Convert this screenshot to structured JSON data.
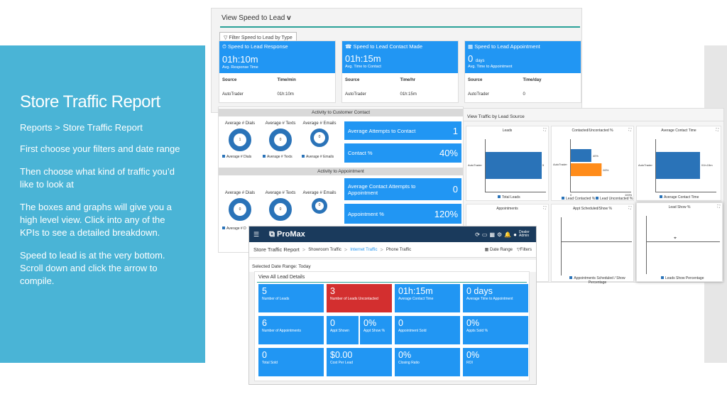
{
  "slide": {
    "title": "Store Traffic Report",
    "breadcrumb": "Reports > Store Traffic Report",
    "paragraphs": [
      "First choose your filters and date range",
      "Then choose what kind of traffic you’d like to look at",
      "The boxes and graphs will give you a high level view. Click into any of the KPIs to see a detailed breakdown.",
      "Speed to lead is at the very bottom. Scroll down and click the arrow to compile."
    ]
  },
  "speed": {
    "title": "View Speed to Lead",
    "filter_button": "Filter Speed to Lead by Type",
    "cards": [
      {
        "title": "Speed to Lead Response",
        "value": "01h:10m",
        "sub": "Avg. Response Time",
        "col1": "Source",
        "col2": "Time/min",
        "src": "AutoTrader",
        "val": "01h:10m"
      },
      {
        "title": "Speed to Lead Contact Made",
        "value": "01h:15m",
        "sub": "Avg. Time to Contact",
        "col1": "Source",
        "col2": "Time/hr",
        "src": "AutoTrader",
        "val": "01h:15m"
      },
      {
        "title": "Speed to Lead Appointment",
        "value": "0",
        "unit": "days",
        "sub": "Avg. Time to Appointment",
        "col1": "Source",
        "col2": "Time/day",
        "src": "AutoTrader",
        "val": "0"
      }
    ]
  },
  "activity": {
    "header1": "Activity to Customer Contact",
    "header2": "Activity to Appointment",
    "dials": [
      "Average # Dials",
      "Average # Texts",
      "Average # Emails"
    ],
    "dial_values": [
      "1",
      "0",
      "0"
    ],
    "dial_values2": [
      "0",
      "0",
      "0"
    ],
    "legend": [
      "Average # Dials",
      "Average # Texts",
      "Average # Emails"
    ],
    "legend2": "Average # D",
    "kpis": [
      {
        "label": "Average Attempts to Contact",
        "value": "1"
      },
      {
        "label": "Contact %",
        "value": "40%"
      },
      {
        "label": "Average Contact Attempts to Appointment",
        "value": "0"
      },
      {
        "label": "Appointment %",
        "value": "120%"
      }
    ]
  },
  "traffic": {
    "title": "View Traffic by Lead Source",
    "panels": [
      "Leads",
      "Contacted/Uncontacted %",
      "Average Contact Time",
      "Appointments",
      "Appt Scheduled/Show %",
      "Lead Show %"
    ],
    "legend_leads": "Total Leads",
    "legend_contacted": "Lead Contacted %",
    "legend_uncontacted": "Lead Uncontacted %",
    "legend_avg": "Average Contact Time",
    "legend_appt": "Appointments Scheduled / Show Percentage",
    "legend_show": "Leads Show Percentage",
    "bar_label": "AutoTrader",
    "pct_40": "40%",
    "pct_60": "60%",
    "val_5": "5",
    "val_time": "01h:15m",
    "ticks": [
      "0",
      "100%"
    ],
    "chart_data": {
      "type": "bar",
      "title": "Contacted/Uncontacted %",
      "categories": [
        "AutoTrader"
      ],
      "series": [
        {
          "name": "Lead Contacted %",
          "values": [
            40
          ]
        },
        {
          "name": "Lead Uncontacted %",
          "values": [
            60
          ]
        }
      ],
      "ylim": [
        0,
        100
      ],
      "colors": [
        "#2a73b8",
        "#ff8c1a"
      ]
    }
  },
  "promax": {
    "logo": "ProMax",
    "user": "Dealer Admin",
    "breadcrumb": [
      "Store Traffic Report",
      "Showroom Traffic",
      "Internet Traffic",
      "Phone Traffic"
    ],
    "date_range": "Date Range",
    "filters": "Filters",
    "selected_date": "Selected Date Range: Today",
    "all_leads_title": "View All Lead Details",
    "tiles": [
      {
        "value": "5",
        "label": "Number of Leads"
      },
      {
        "value": "3",
        "label": "Number of Leads Uncontacted"
      },
      {
        "value": "01h:15m",
        "label": "Average Contact Time"
      },
      {
        "value": "0 days",
        "label": "Average Time to Appointment"
      },
      {
        "value": "6",
        "label": "Number of Appointments"
      },
      {
        "value": "0",
        "label": "Appt Shown"
      },
      {
        "value": "0%",
        "label": "Appt Show %"
      },
      {
        "value": "0",
        "label": "Appointment Sold"
      },
      {
        "value": "0%",
        "label": "Appts Sold %"
      },
      {
        "value": "0",
        "label": "Total Sold"
      },
      {
        "value": "$0.00",
        "label": "Cost Per Lead"
      },
      {
        "value": "0%",
        "label": "Closing Ratio"
      },
      {
        "value": "0%",
        "label": "ROI"
      }
    ]
  }
}
